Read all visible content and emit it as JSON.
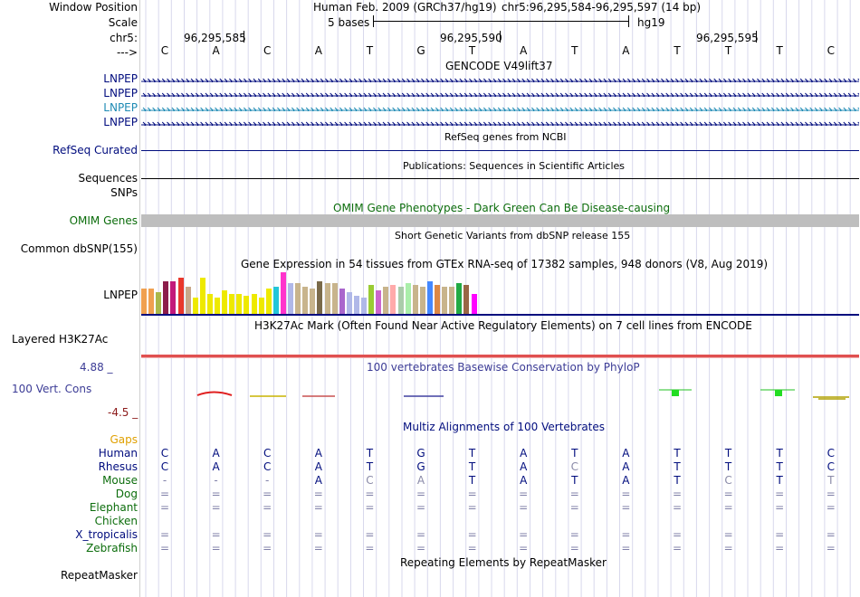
{
  "header": {
    "window_position_label": "Window Position",
    "scale_label": "Scale",
    "chrom_label": "chr5:",
    "arrow_label": "--->",
    "assembly_title": "Human Feb. 2009 (GRCh37/hg19)",
    "position_text": "chr5:96,295,584-96,295,597 (14 bp)",
    "scale_text": "5 bases",
    "db_text": "hg19",
    "coords": [
      "96,295,585",
      "96,295,590",
      "96,295,595"
    ],
    "bases": [
      "C",
      "A",
      "C",
      "A",
      "T",
      "G",
      "T",
      "A",
      "T",
      "A",
      "T",
      "T",
      "T",
      "C"
    ]
  },
  "tracks": {
    "gencode_title": "GENCODE V49lift37",
    "gencode_labels": [
      "LNPEP",
      "LNPEP",
      "LNPEP",
      "LNPEP"
    ],
    "refseq_label": "RefSeq Curated",
    "refseq_title": "RefSeq genes from NCBI",
    "sequences_label": "Sequences",
    "publications_title": "Publications: Sequences in Scientific Articles",
    "snps_label": "SNPs",
    "omim_title": "OMIM Gene Phenotypes - Dark Green Can Be Disease-causing",
    "omim_label": "OMIM Genes",
    "dbsnp_label": "Common dbSNP(155)",
    "dbsnp_title": "Short Genetic Variants from dbSNP release 155",
    "gtex_title": "Gene Expression in 54 tissues from GTEx RNA-seq of 17382 samples, 948 donors (V8, Aug 2019)",
    "gtex_label": "LNPEP",
    "h3k27_title": "H3K27Ac Mark (Often Found Near Active Regulatory Elements) on 7 cell lines from ENCODE",
    "h3k27_label": "Layered H3K27Ac",
    "phylop_max": "4.88 _",
    "phylop_title": "100 vertebrates Basewise Conservation by PhyloP",
    "phylop_label": "100 Vert. Cons",
    "phylop_min": "-4.5 _",
    "multiz_title": "Multiz Alignments of 100 Vertebrates",
    "repeat_title": "Repeating Elements by RepeatMasker",
    "repeat_label": "RepeatMasker"
  },
  "gtex_colors": [
    "#f0a050",
    "#f0a050",
    "#aab84a",
    "#8c1d4a",
    "#c3197b",
    "#e9382c",
    "#c8a88a",
    "#eee900",
    "#eee900",
    "#eee900",
    "#eee900",
    "#eee900",
    "#eee900",
    "#eee900",
    "#eee900",
    "#eee900",
    "#eee900",
    "#eee900",
    "#23c6d9",
    "#ff33cc",
    "#b0b8e8",
    "#c8b48c",
    "#c8b48c",
    "#c8b48c",
    "#7a6a4a",
    "#c8b48c",
    "#c8b48c",
    "#aa66cc",
    "#b0b8e8",
    "#b0b8e8",
    "#b0b8e8",
    "#9acc33",
    "#cc66cc",
    "#c8b48c",
    "#ffaaaa",
    "#aaccaa",
    "#aaeeaa",
    "#c8b48c",
    "#c8b48c",
    "#4488ff",
    "#dd8844",
    "#c8b48c",
    "#c8b48c",
    "#22aa44",
    "#996644",
    "#ff00ff"
  ],
  "gtex_values": [
    28,
    28,
    24,
    36,
    36,
    40,
    30,
    18,
    40,
    22,
    18,
    26,
    22,
    22,
    20,
    22,
    18,
    28,
    30,
    46,
    34,
    34,
    30,
    28,
    36,
    34,
    34,
    28,
    24,
    20,
    18,
    32,
    26,
    30,
    32,
    30,
    34,
    32,
    30,
    36,
    32,
    30,
    30,
    34,
    32,
    22
  ],
  "alignment": {
    "gaps_label": "Gaps",
    "species": [
      {
        "name": "Human",
        "bases": [
          "C",
          "A",
          "C",
          "A",
          "T",
          "G",
          "T",
          "A",
          "T",
          "A",
          "T",
          "T",
          "T",
          "C"
        ]
      },
      {
        "name": "Rhesus",
        "bases": [
          "C",
          "A",
          "C",
          "A",
          "T",
          "G",
          "T",
          "A",
          "C",
          "A",
          "T",
          "T",
          "T",
          "C"
        ]
      },
      {
        "name": "Mouse",
        "bases": [
          "-",
          "-",
          "-",
          "A",
          "C",
          "A",
          "T",
          "A",
          "T",
          "A",
          "T",
          "C",
          "T",
          "T"
        ]
      },
      {
        "name": "Dog",
        "bases": [
          "=",
          "=",
          "=",
          "=",
          "=",
          "=",
          "=",
          "=",
          "=",
          "=",
          "=",
          "=",
          "=",
          "="
        ]
      },
      {
        "name": "Elephant",
        "bases": [
          "=",
          "=",
          "=",
          "=",
          "=",
          "=",
          "=",
          "=",
          "=",
          "=",
          "=",
          "=",
          "=",
          "="
        ]
      },
      {
        "name": "Chicken",
        "bases": [
          "",
          "",
          "",
          "",
          "",
          "",
          "",
          "",
          "",
          "",
          "",
          "",
          "",
          ""
        ]
      },
      {
        "name": "X_tropicalis",
        "bases": [
          "=",
          "=",
          "=",
          "=",
          "=",
          "=",
          "=",
          "=",
          "=",
          "=",
          "=",
          "=",
          "=",
          "="
        ]
      },
      {
        "name": "Zebrafish",
        "bases": [
          "=",
          "=",
          "=",
          "=",
          "=",
          "=",
          "=",
          "=",
          "=",
          "=",
          "=",
          "=",
          "=",
          "="
        ]
      }
    ]
  },
  "colors": {
    "navy": "#000c7e",
    "green": "#0c6d0c",
    "omim_gray": "#bebebe",
    "h3k27": "#e05050",
    "phylop_title": "#3c3c96",
    "phylop_max": "#3c3c96",
    "phylop_min": "#8c1a1a"
  }
}
